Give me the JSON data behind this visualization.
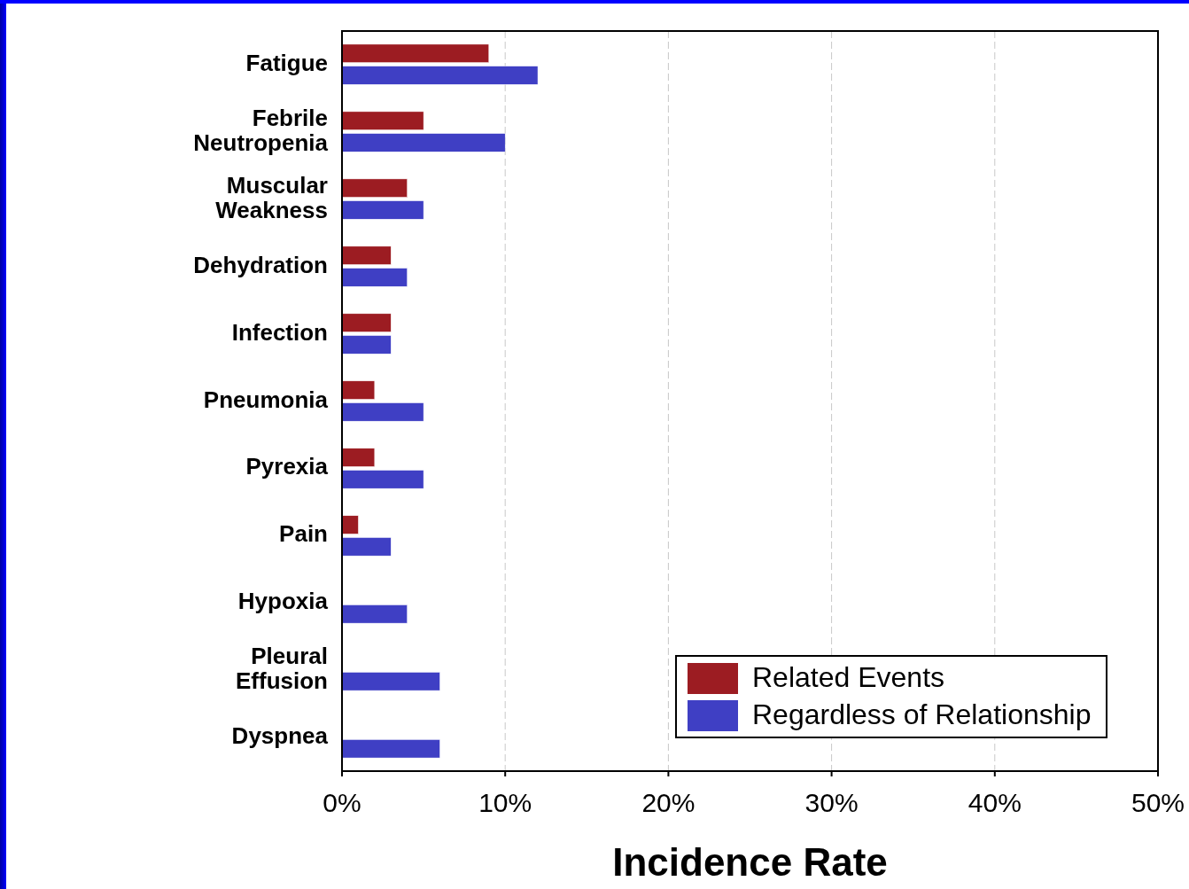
{
  "chart_data": {
    "type": "bar",
    "orientation": "horizontal",
    "xlabel": "Incidence Rate",
    "categories": [
      "Fatigue",
      "Febrile Neutropenia",
      "Muscular Weakness",
      "Dehydration",
      "Infection",
      "Pneumonia",
      "Pyrexia",
      "Pain",
      "Hypoxia",
      "Pleural Effusion",
      "Dyspnea"
    ],
    "series": [
      {
        "name": "Related Events",
        "color": "#9c1c22",
        "values": [
          9,
          5,
          4,
          3,
          3,
          2,
          2,
          1,
          0,
          0,
          0
        ]
      },
      {
        "name": "Regardless of Relationship",
        "color": "#3f3fc4",
        "values": [
          12,
          10,
          5,
          4,
          3,
          5,
          5,
          3,
          4,
          6,
          6
        ]
      }
    ],
    "xlim": [
      0,
      50
    ],
    "xticks": [
      {
        "value": 0,
        "label": "0%"
      },
      {
        "value": 10,
        "label": "10%"
      },
      {
        "value": 20,
        "label": "20%"
      },
      {
        "value": 30,
        "label": "30%"
      },
      {
        "value": 40,
        "label": "40%"
      },
      {
        "value": 50,
        "label": "50%"
      }
    ],
    "grid": "x",
    "legend": "bottom right"
  }
}
